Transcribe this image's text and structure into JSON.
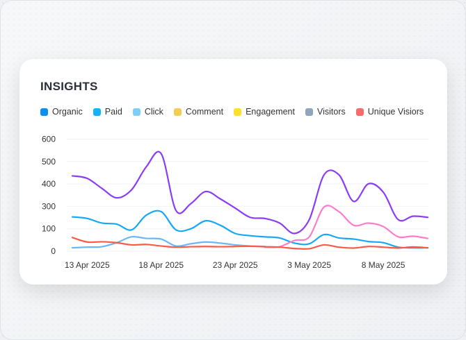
{
  "title": "INSIGHTS",
  "legend": [
    {
      "label": "Organic",
      "color": "#0a8ef0"
    },
    {
      "label": "Paid",
      "color": "#17b3f9"
    },
    {
      "label": "Click",
      "color": "#7fcdfb"
    },
    {
      "label": "Comment",
      "color": "#f3cc53"
    },
    {
      "label": "Engagement",
      "color": "#fde02f"
    },
    {
      "label": "Visitors",
      "color": "#8fa4bd"
    },
    {
      "label": "Unique Visiors",
      "color": "#fb6a6a"
    }
  ],
  "chart_data": {
    "type": "line",
    "title": "INSIGHTS",
    "xlabel": "",
    "ylabel": "",
    "ylim": [
      0,
      600
    ],
    "y_ticks": [
      "0",
      "100",
      "300",
      "400",
      "500",
      "600"
    ],
    "y_tick_values": [
      0,
      100,
      300,
      400,
      500,
      600
    ],
    "x_tick_labels": [
      {
        "index": 1,
        "label": "13 Apr 2025"
      },
      {
        "index": 6,
        "label": "18 Apr 2025"
      },
      {
        "index": 11,
        "label": "23 Apr 2025"
      },
      {
        "index": 16,
        "label": "3 May 2025"
      },
      {
        "index": 21,
        "label": "8 May 2025"
      }
    ],
    "grid": true,
    "legend_position": "top-left",
    "series": [
      {
        "color": "#8b3cf7",
        "values": [
          436,
          425,
          380,
          338,
          374,
          477,
          535,
          263,
          312,
          366,
          333,
          284,
          202,
          192,
          151,
          79,
          182,
          441,
          441,
          322,
          401,
          363,
          182,
          212,
          202
        ]
      },
      {
        "color": "#17a8f5",
        "values": [
          206,
          192,
          151,
          141,
          95,
          222,
          253,
          95,
          100,
          171,
          131,
          79,
          69,
          64,
          59,
          36,
          33,
          74,
          59,
          54,
          43,
          38,
          18,
          15,
          15
        ]
      },
      {
        "color": "#ff7ccb",
        "values": [
          null,
          null,
          null,
          null,
          null,
          null,
          null,
          null,
          null,
          null,
          null,
          null,
          null,
          18,
          20,
          48,
          64,
          294,
          253,
          131,
          151,
          120,
          64,
          67,
          57
        ]
      },
      {
        "color": "#6ab6f7",
        "values": [
          15,
          18,
          20,
          38,
          64,
          57,
          54,
          23,
          33,
          41,
          36,
          28,
          23,
          21,
          null,
          null,
          null,
          null,
          null,
          null,
          null,
          null,
          null,
          null,
          null
        ]
      },
      {
        "color": "#fb5a48",
        "values": [
          61,
          41,
          42,
          38,
          28,
          30,
          23,
          18,
          20,
          21,
          20,
          21,
          22,
          20,
          18,
          12,
          11,
          28,
          18,
          14,
          21,
          18,
          14,
          19,
          15
        ]
      }
    ]
  }
}
